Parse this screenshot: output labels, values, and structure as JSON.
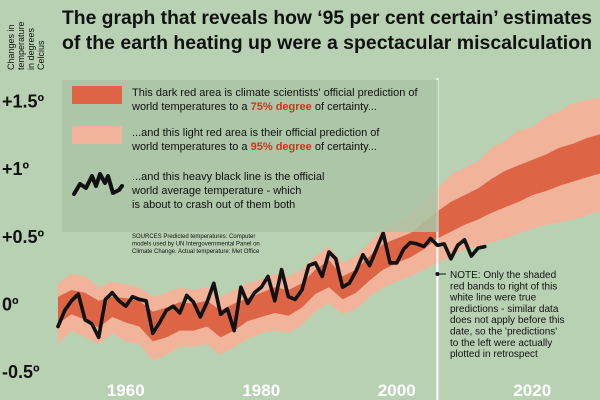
{
  "chart_data": {
    "type": "area",
    "title": "The graph that reveals how ‘95 per cent certain’ estimates of the earth heating up were a spectacular miscalculation",
    "title_lines": [
      "The graph that reveals how ‘95 per cent certain’ estimates",
      "of the earth heating up were a spectacular miscalculation"
    ],
    "ylabel_lines": [
      "Changes in",
      "temperature",
      "in degrees",
      "Celcius"
    ],
    "xlim": [
      1950,
      2030
    ],
    "ylim": [
      -0.55,
      1.65
    ],
    "x_ticks": [
      {
        "v": 1960,
        "label": "1960"
      },
      {
        "v": 1980,
        "label": "1980"
      },
      {
        "v": 2000,
        "label": "2000"
      },
      {
        "v": 2020,
        "label": "2020"
      }
    ],
    "y_ticks": [
      {
        "v": 1.5,
        "label": "+1.5º"
      },
      {
        "v": 1.0,
        "label": "+1º"
      },
      {
        "v": 0.5,
        "label": "+0.5º"
      },
      {
        "v": 0.0,
        "label": "0º"
      },
      {
        "v": -0.5,
        "label": "-0.5º"
      }
    ],
    "cutoff_year": 2006,
    "legend": {
      "band75": [
        {
          "text": "This dark red area is climate scientists' official prediction of",
          "hl": ""
        },
        {
          "text": "world temperatures to a ",
          "hl": "75% degree",
          "post": " of certainty..."
        }
      ],
      "band95": [
        {
          "text": "...and this light red area is their official prediction of",
          "hl": ""
        },
        {
          "text": "world temperatures to a ",
          "hl": "95% degree",
          "post": " of certainty..."
        }
      ],
      "obs": [
        {
          "text": "...and this heavy black line is the official",
          "hl": ""
        },
        {
          "text": "world average temperature - which",
          "hl": ""
        },
        {
          "text": "is about to crash out of them both",
          "hl": ""
        }
      ]
    },
    "sources": [
      "SOURCES Predicted temperatures: Computer",
      "models used by UN Intergovernmental Panel on",
      "Climate Change. Actual temperature: Met Office"
    ],
    "note": [
      "NOTE: Only the shaded",
      "red bands to right of this",
      "white line were true",
      "predictions - similar data",
      "does not apply before this",
      "date, so the 'predictions'",
      "to the left were actually",
      "plotted in retrospect"
    ],
    "colors": {
      "background": "#b9d1b3",
      "legend_bg": "#a9c4a4",
      "band95": "#f1b49a",
      "band75": "#de6446",
      "observed": "#111111",
      "highlight": "#c9381d",
      "text": "#111111",
      "tick_text": "#ffffff"
    },
    "series": [
      {
        "name": "Predicted 95% band",
        "x": [
          1950,
          1952,
          1954,
          1956,
          1958,
          1960,
          1962,
          1964,
          1966,
          1968,
          1970,
          1972,
          1974,
          1976,
          1978,
          1980,
          1982,
          1984,
          1986,
          1988,
          1990,
          1992,
          1994,
          1996,
          1998,
          2000,
          2002,
          2004,
          2006,
          2008,
          2010,
          2012,
          2014,
          2016,
          2018,
          2020,
          2022,
          2024,
          2026,
          2028,
          2030
        ],
        "upper": [
          0.15,
          0.22,
          0.2,
          0.12,
          0.16,
          0.14,
          0.12,
          0.05,
          0.08,
          0.12,
          0.1,
          0.12,
          0.05,
          0.1,
          0.15,
          0.18,
          0.22,
          0.2,
          0.25,
          0.35,
          0.42,
          0.3,
          0.35,
          0.45,
          0.55,
          0.6,
          0.65,
          0.75,
          0.85,
          0.95,
          1.0,
          1.05,
          1.15,
          1.2,
          1.28,
          1.3,
          1.38,
          1.42,
          1.48,
          1.5,
          1.52
        ],
        "lower": [
          -0.3,
          -0.2,
          -0.25,
          -0.3,
          -0.22,
          -0.28,
          -0.3,
          -0.42,
          -0.38,
          -0.32,
          -0.32,
          -0.3,
          -0.38,
          -0.32,
          -0.26,
          -0.22,
          -0.2,
          -0.22,
          -0.16,
          -0.06,
          0.0,
          -0.08,
          -0.04,
          0.05,
          0.12,
          0.16,
          0.2,
          0.25,
          0.3,
          0.35,
          0.4,
          0.42,
          0.45,
          0.48,
          0.52,
          0.55,
          0.58,
          0.6,
          0.62,
          0.65,
          0.68
        ]
      },
      {
        "name": "Predicted 75% band",
        "x": [
          1950,
          1952,
          1954,
          1956,
          1958,
          1960,
          1962,
          1964,
          1966,
          1968,
          1970,
          1972,
          1974,
          1976,
          1978,
          1980,
          1982,
          1984,
          1986,
          1988,
          1990,
          1992,
          1994,
          1996,
          1998,
          2000,
          2002,
          2004,
          2006,
          2008,
          2010,
          2012,
          2014,
          2016,
          2018,
          2020,
          2022,
          2024,
          2026,
          2028,
          2030
        ],
        "upper": [
          0.05,
          0.1,
          0.08,
          0.02,
          0.05,
          0.04,
          0.02,
          -0.06,
          -0.03,
          0.01,
          0.0,
          0.02,
          -0.05,
          0.0,
          0.04,
          0.08,
          0.12,
          0.1,
          0.15,
          0.25,
          0.32,
          0.2,
          0.25,
          0.35,
          0.44,
          0.48,
          0.52,
          0.6,
          0.68,
          0.75,
          0.8,
          0.85,
          0.92,
          0.98,
          1.02,
          1.06,
          1.1,
          1.15,
          1.18,
          1.22,
          1.25
        ],
        "lower": [
          -0.15,
          -0.08,
          -0.12,
          -0.18,
          -0.1,
          -0.14,
          -0.17,
          -0.28,
          -0.25,
          -0.2,
          -0.2,
          -0.17,
          -0.25,
          -0.2,
          -0.13,
          -0.1,
          -0.07,
          -0.09,
          -0.03,
          0.07,
          0.12,
          0.03,
          0.08,
          0.17,
          0.25,
          0.3,
          0.34,
          0.4,
          0.48,
          0.53,
          0.58,
          0.62,
          0.67,
          0.71,
          0.75,
          0.8,
          0.83,
          0.87,
          0.9,
          0.93,
          0.96
        ]
      },
      {
        "name": "Observed temperature",
        "x": [
          1950,
          1951,
          1952,
          1953,
          1954,
          1955,
          1956,
          1957,
          1958,
          1959,
          1960,
          1961,
          1962,
          1963,
          1964,
          1965,
          1966,
          1967,
          1968,
          1969,
          1970,
          1971,
          1972,
          1973,
          1974,
          1975,
          1976,
          1977,
          1978,
          1979,
          1980,
          1981,
          1982,
          1983,
          1984,
          1985,
          1986,
          1987,
          1988,
          1989,
          1990,
          1991,
          1992,
          1993,
          1994,
          1995,
          1996,
          1997,
          1998,
          1999,
          2000,
          2001,
          2002,
          2003,
          2004,
          2005,
          2006,
          2007,
          2008,
          2009,
          2010,
          2011,
          2012,
          2013
        ],
        "y": [
          -0.17,
          -0.05,
          0.02,
          0.07,
          -0.12,
          -0.15,
          -0.25,
          0.03,
          0.08,
          0.02,
          -0.02,
          0.05,
          0.03,
          0.02,
          -0.22,
          -0.14,
          -0.05,
          -0.02,
          -0.07,
          0.06,
          0.01,
          -0.1,
          0.01,
          0.15,
          -0.08,
          -0.04,
          -0.2,
          0.12,
          0.0,
          0.08,
          0.12,
          0.2,
          0.02,
          0.25,
          0.05,
          0.03,
          0.1,
          0.28,
          0.3,
          0.2,
          0.38,
          0.33,
          0.12,
          0.15,
          0.24,
          0.36,
          0.28,
          0.4,
          0.52,
          0.3,
          0.3,
          0.4,
          0.45,
          0.44,
          0.42,
          0.48,
          0.43,
          0.44,
          0.33,
          0.43,
          0.47,
          0.35,
          0.41,
          0.42
        ]
      }
    ]
  }
}
